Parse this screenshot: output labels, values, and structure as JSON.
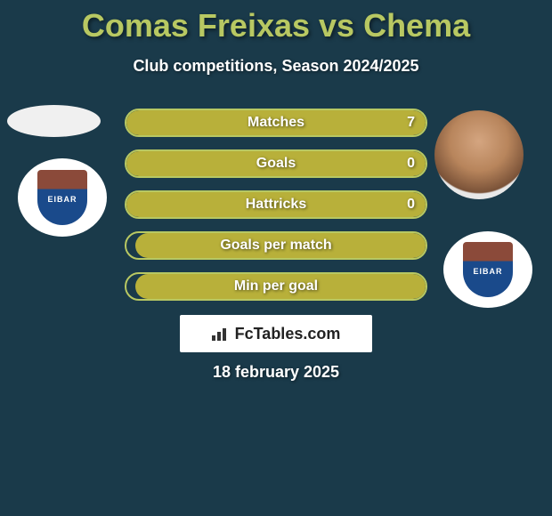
{
  "title": "Comas Freixas vs Chema",
  "subtitle": "Club competitions, Season 2024/2025",
  "date": "18 february 2025",
  "branding": "FcTables.com",
  "club_badge_text": "EIBAR",
  "colors": {
    "background": "#1a3a4a",
    "accent": "#b8c862",
    "bar_fill": "#b8b03a",
    "title": "#b8c862",
    "text": "#ffffff",
    "brand_bg": "#ffffff",
    "brand_text": "#222222"
  },
  "bars": [
    {
      "label": "Matches",
      "value_left": "",
      "value_right": "7",
      "fill_left_pct": 0,
      "fill_right_pct": 100
    },
    {
      "label": "Goals",
      "value_left": "",
      "value_right": "0",
      "fill_left_pct": 0,
      "fill_right_pct": 100
    },
    {
      "label": "Hattricks",
      "value_left": "",
      "value_right": "0",
      "fill_left_pct": 0,
      "fill_right_pct": 100
    },
    {
      "label": "Goals per match",
      "value_left": "",
      "value_right": "",
      "fill_left_pct": 0,
      "fill_right_pct": 97
    },
    {
      "label": "Min per goal",
      "value_left": "",
      "value_right": "",
      "fill_left_pct": 0,
      "fill_right_pct": 97
    }
  ]
}
